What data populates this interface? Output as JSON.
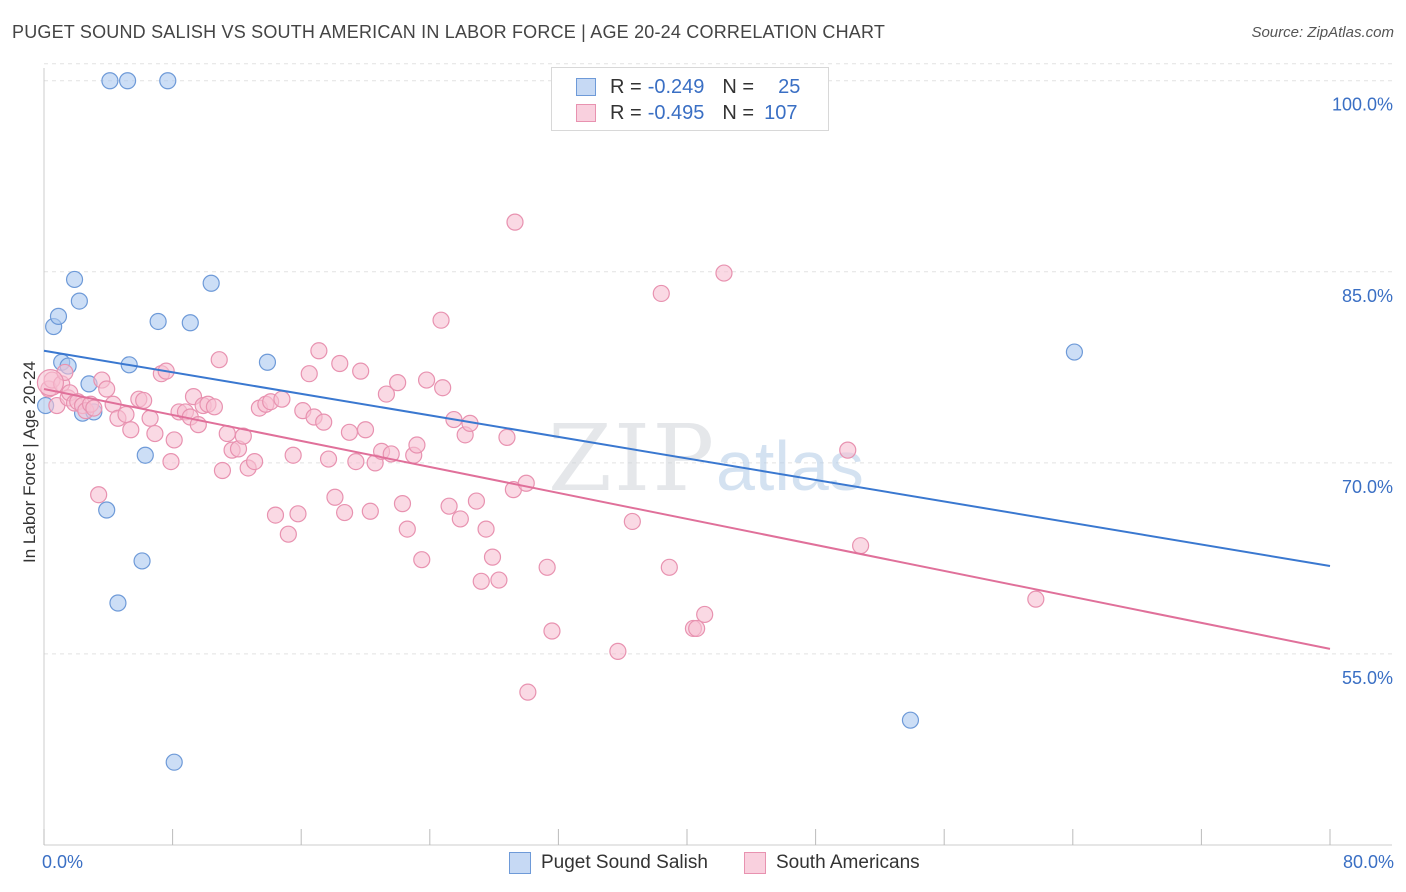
{
  "header": {
    "title": "PUGET SOUND SALISH VS SOUTH AMERICAN IN LABOR FORCE | AGE 20-24 CORRELATION CHART",
    "source": "Source: ZipAtlas.com"
  },
  "legend": {
    "rows": [
      {
        "r_label": "R =",
        "r_value": "-0.249",
        "n_label": "N =",
        "n_value": "25"
      },
      {
        "r_label": "R =",
        "r_value": "-0.495",
        "n_label": "N =",
        "n_value": "107"
      }
    ]
  },
  "bottom_legend": [
    {
      "label": "Puget Sound Salish"
    },
    {
      "label": "South Americans"
    }
  ],
  "watermark": {
    "zip": "ZIP",
    "atlas": "atlas"
  },
  "colors": {
    "blue_fill": "#aac8f0",
    "blue_stroke": "#6e9ad8",
    "blue_line": "#3a78d0",
    "pink_fill": "#f7bfd2",
    "pink_stroke": "#e892b0",
    "pink_line": "#e0709a",
    "axis_text": "#3a6fc4",
    "grid": "#e2e2e2"
  },
  "chart_data": {
    "type": "scatter",
    "title": "PUGET SOUND SALISH VS SOUTH AMERICAN IN LABOR FORCE | AGE 20-24 CORRELATION CHART",
    "ylabel": "In Labor Force | Age 20-24",
    "xlabel": "",
    "xlim": [
      0,
      80
    ],
    "ylim": [
      40,
      101
    ],
    "x_tick_labels": [
      "0.0%",
      "80.0%"
    ],
    "y_ticks": [
      55,
      70,
      85,
      100
    ],
    "y_tick_labels": [
      "55.0%",
      "70.0%",
      "85.0%",
      "100.0%"
    ],
    "grid": true,
    "legend_position": "top-center",
    "series": [
      {
        "name": "Puget Sound Salish",
        "points": [
          [
            0.1,
            74.5
          ],
          [
            0.6,
            80.7
          ],
          [
            0.9,
            81.5
          ],
          [
            1.1,
            77.9
          ],
          [
            1.5,
            77.6
          ],
          [
            1.9,
            84.4
          ],
          [
            2.2,
            82.7
          ],
          [
            2.4,
            73.9
          ],
          [
            2.8,
            76.2
          ],
          [
            3.1,
            74.0
          ],
          [
            3.9,
            66.3
          ],
          [
            4.1,
            100.0
          ],
          [
            4.6,
            59.0
          ],
          [
            5.2,
            100.0
          ],
          [
            5.3,
            77.7
          ],
          [
            6.1,
            62.3
          ],
          [
            6.3,
            70.6
          ],
          [
            7.1,
            81.1
          ],
          [
            7.7,
            100.0
          ],
          [
            8.1,
            46.5
          ],
          [
            9.1,
            81.0
          ],
          [
            10.4,
            84.1
          ],
          [
            13.9,
            77.9
          ],
          [
            53.9,
            49.8
          ],
          [
            64.1,
            78.7
          ]
        ],
        "trend": {
          "x": [
            0,
            80
          ],
          "y": [
            78.8,
            61.9
          ]
        }
      },
      {
        "name": "South Americans",
        "points": [
          [
            0.3,
            75.8
          ],
          [
            0.5,
            76.5
          ],
          [
            0.8,
            74.5
          ],
          [
            1.1,
            76.2
          ],
          [
            1.3,
            77.1
          ],
          [
            1.5,
            75.1
          ],
          [
            1.6,
            75.5
          ],
          [
            1.9,
            74.7
          ],
          [
            2.1,
            74.8
          ],
          [
            2.4,
            74.5
          ],
          [
            2.6,
            74.1
          ],
          [
            2.9,
            74.6
          ],
          [
            3.1,
            74.3
          ],
          [
            3.4,
            67.5
          ],
          [
            3.6,
            76.5
          ],
          [
            3.9,
            75.8
          ],
          [
            4.3,
            74.6
          ],
          [
            4.6,
            73.5
          ],
          [
            5.1,
            73.8
          ],
          [
            5.4,
            72.6
          ],
          [
            5.9,
            75.0
          ],
          [
            6.2,
            74.9
          ],
          [
            6.6,
            73.5
          ],
          [
            6.9,
            72.3
          ],
          [
            7.3,
            77.0
          ],
          [
            7.6,
            77.2
          ],
          [
            7.9,
            70.1
          ],
          [
            8.1,
            71.8
          ],
          [
            8.4,
            74.0
          ],
          [
            8.8,
            74.0
          ],
          [
            9.1,
            73.6
          ],
          [
            9.3,
            75.2
          ],
          [
            9.6,
            73.0
          ],
          [
            9.9,
            74.5
          ],
          [
            10.2,
            74.6
          ],
          [
            10.6,
            74.4
          ],
          [
            10.9,
            78.1
          ],
          [
            11.1,
            69.4
          ],
          [
            11.4,
            72.3
          ],
          [
            11.7,
            71.0
          ],
          [
            12.1,
            71.1
          ],
          [
            12.4,
            72.1
          ],
          [
            12.7,
            69.6
          ],
          [
            13.1,
            70.1
          ],
          [
            13.4,
            74.3
          ],
          [
            13.8,
            74.6
          ],
          [
            14.1,
            74.8
          ],
          [
            14.4,
            65.9
          ],
          [
            14.8,
            75.0
          ],
          [
            15.2,
            64.4
          ],
          [
            15.5,
            70.6
          ],
          [
            15.8,
            66.0
          ],
          [
            16.1,
            74.1
          ],
          [
            16.5,
            77.0
          ],
          [
            16.8,
            73.6
          ],
          [
            17.1,
            78.8
          ],
          [
            17.4,
            73.2
          ],
          [
            17.7,
            70.3
          ],
          [
            18.1,
            67.3
          ],
          [
            18.4,
            77.8
          ],
          [
            18.7,
            66.1
          ],
          [
            19.0,
            72.4
          ],
          [
            19.4,
            70.1
          ],
          [
            19.7,
            77.2
          ],
          [
            20.0,
            72.6
          ],
          [
            20.3,
            66.2
          ],
          [
            20.6,
            70.0
          ],
          [
            21.0,
            70.9
          ],
          [
            21.3,
            75.4
          ],
          [
            21.6,
            70.7
          ],
          [
            22.0,
            76.3
          ],
          [
            22.3,
            66.8
          ],
          [
            22.6,
            64.8
          ],
          [
            23.0,
            70.6
          ],
          [
            23.2,
            71.4
          ],
          [
            23.5,
            62.4
          ],
          [
            23.8,
            76.5
          ],
          [
            24.7,
            81.2
          ],
          [
            24.8,
            75.9
          ],
          [
            25.2,
            66.6
          ],
          [
            25.5,
            73.4
          ],
          [
            25.9,
            65.6
          ],
          [
            26.2,
            72.2
          ],
          [
            26.5,
            73.1
          ],
          [
            26.9,
            67.0
          ],
          [
            27.2,
            60.7
          ],
          [
            27.5,
            64.8
          ],
          [
            27.9,
            62.6
          ],
          [
            28.3,
            60.8
          ],
          [
            28.8,
            72.0
          ],
          [
            29.2,
            67.9
          ],
          [
            29.3,
            88.9
          ],
          [
            30.0,
            68.4
          ],
          [
            30.1,
            52.0
          ],
          [
            31.3,
            61.8
          ],
          [
            31.6,
            56.8
          ],
          [
            35.7,
            55.2
          ],
          [
            36.6,
            65.4
          ],
          [
            38.4,
            83.3
          ],
          [
            38.9,
            61.8
          ],
          [
            40.4,
            57.0
          ],
          [
            40.6,
            57.0
          ],
          [
            41.1,
            58.1
          ],
          [
            42.3,
            84.9
          ],
          [
            50.0,
            71.0
          ],
          [
            50.8,
            63.5
          ],
          [
            61.7,
            59.3
          ]
        ],
        "trend": {
          "x": [
            0,
            80
          ],
          "y": [
            75.8,
            55.4
          ]
        }
      }
    ]
  }
}
